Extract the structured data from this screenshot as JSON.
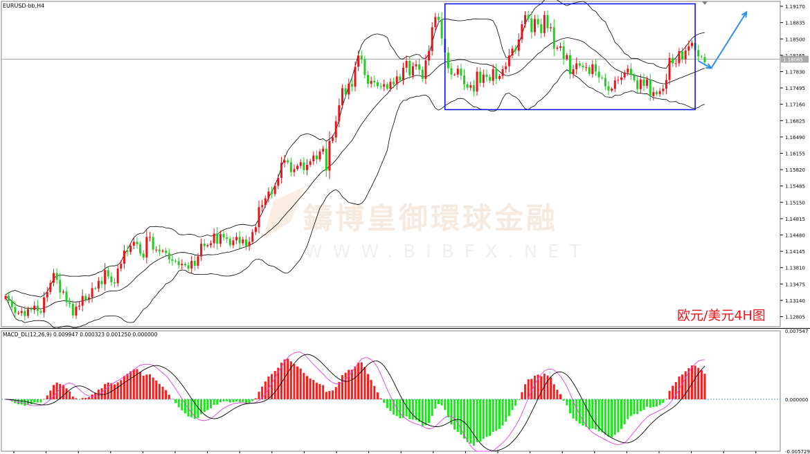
{
  "symbol_label": "EURUSD-bb,H4",
  "chart_caption": "欧元/美元4H图",
  "watermark": {
    "line1": "鑄博皇御環球金融",
    "line2": "WWW.BIBFX.NET"
  },
  "price_label": "1.18085",
  "macd_label": "MACD_DL(12,26,9) 0.009947 0.000323 0.001250 0.000000",
  "colors": {
    "bull": "#e8141a",
    "bear": "#22cc22",
    "band": "#000000",
    "box": "#0000ff",
    "arrow": "#2f8fe6",
    "macd_pos": "#ff1a1a",
    "macd_neg": "#18e818",
    "signal": "#e040e0",
    "macd_line": "#000000"
  },
  "chart_data": [
    {
      "type": "candlestick",
      "price_axis_ticks": [
        "1.19170",
        "1.18835",
        "1.18500",
        "1.18165",
        "1.17830",
        "1.17495",
        "1.17160",
        "1.16825",
        "1.16490",
        "1.16155",
        "1.15820",
        "1.15485",
        "1.15150",
        "1.14815",
        "1.14480",
        "1.14145",
        "1.13810",
        "1.13475",
        "1.13140",
        "1.12805"
      ],
      "ylim": [
        1.126,
        1.1927
      ],
      "current_price": 1.18085,
      "annotation_box": {
        "x_range": [
          137,
          215
        ],
        "price_range": [
          1.1705,
          1.1922
        ]
      },
      "arrows": [
        {
          "from": [
            216,
            1.1805
          ],
          "to": [
            220,
            1.179
          ]
        },
        {
          "from": [
            220,
            1.179
          ],
          "to": [
            231,
            1.1905
          ]
        }
      ],
      "closes": [
        1.1323,
        1.1313,
        1.13,
        1.1288,
        1.1288,
        1.1292,
        1.1282,
        1.1296,
        1.1294,
        1.1303,
        1.1292,
        1.1289,
        1.132,
        1.1331,
        1.135,
        1.137,
        1.1356,
        1.133,
        1.1332,
        1.131,
        1.1307,
        1.1283,
        1.1301,
        1.1303,
        1.1323,
        1.1315,
        1.132,
        1.1339,
        1.1338,
        1.1354,
        1.1347,
        1.1376,
        1.1363,
        1.1351,
        1.1349,
        1.1379,
        1.1389,
        1.1416,
        1.1413,
        1.1426,
        1.1434,
        1.1429,
        1.141,
        1.1402,
        1.1444,
        1.1444,
        1.1418,
        1.1418,
        1.1414,
        1.1416,
        1.1411,
        1.1398,
        1.1395,
        1.1394,
        1.1386,
        1.1389,
        1.1386,
        1.1379,
        1.1395,
        1.1385,
        1.1404,
        1.143,
        1.1425,
        1.1427,
        1.1431,
        1.1451,
        1.143,
        1.145,
        1.1443,
        1.144,
        1.1427,
        1.1437,
        1.1444,
        1.1431,
        1.1439,
        1.1425,
        1.1434,
        1.1454,
        1.1464,
        1.1505,
        1.1509,
        1.1523,
        1.1537,
        1.1532,
        1.1549,
        1.1565,
        1.1596,
        1.1601,
        1.1597,
        1.1577,
        1.1583,
        1.159,
        1.1597,
        1.1581,
        1.1592,
        1.1599,
        1.1611,
        1.1603,
        1.1619,
        1.1625,
        1.158,
        1.1641,
        1.1648,
        1.1681,
        1.1714,
        1.1749,
        1.1736,
        1.1758,
        1.1752,
        1.1793,
        1.1816,
        1.1808,
        1.1776,
        1.1758,
        1.1764,
        1.1761,
        1.1753,
        1.1752,
        1.1757,
        1.1748,
        1.1762,
        1.1757,
        1.1773,
        1.1765,
        1.1791,
        1.1805,
        1.1775,
        1.1794,
        1.1798,
        1.1787,
        1.1768,
        1.1806,
        1.1825,
        1.1874,
        1.1895,
        1.1889,
        1.1851,
        1.1822,
        1.179,
        1.1777,
        1.1777,
        1.1789,
        1.1775,
        1.1757,
        1.175,
        1.1755,
        1.1742,
        1.1783,
        1.176,
        1.1777,
        1.1772,
        1.1764,
        1.1788,
        1.1768,
        1.1774,
        1.1788,
        1.1794,
        1.1816,
        1.183,
        1.1826,
        1.1849,
        1.188,
        1.1899,
        1.1892,
        1.1864,
        1.1891,
        1.188,
        1.1862,
        1.1899,
        1.1872,
        1.1874,
        1.183,
        1.1832,
        1.1835,
        1.1809,
        1.1817,
        1.1778,
        1.1788,
        1.18,
        1.1795,
        1.1792,
        1.1792,
        1.1778,
        1.1798,
        1.1783,
        1.1771,
        1.177,
        1.1753,
        1.1744,
        1.1748,
        1.1765,
        1.1766,
        1.1771,
        1.1781,
        1.1789,
        1.1776,
        1.1765,
        1.1747,
        1.1767,
        1.1754,
        1.1767,
        1.1733,
        1.1741,
        1.1737,
        1.1743,
        1.1748,
        1.1766,
        1.1811,
        1.18,
        1.18,
        1.1825,
        1.1808,
        1.1826,
        1.1835,
        1.1842,
        1.1827,
        1.1814,
        1.1813,
        1.1802
      ],
      "bb_period": 20,
      "bb_deviation": 2,
      "macd": {
        "params": [
          12,
          26,
          9
        ],
        "axis_ticks": [
          "0.007547",
          "0.000000",
          "-0.005729"
        ],
        "ylim": [
          -0.005729,
          0.007547
        ]
      }
    }
  ]
}
